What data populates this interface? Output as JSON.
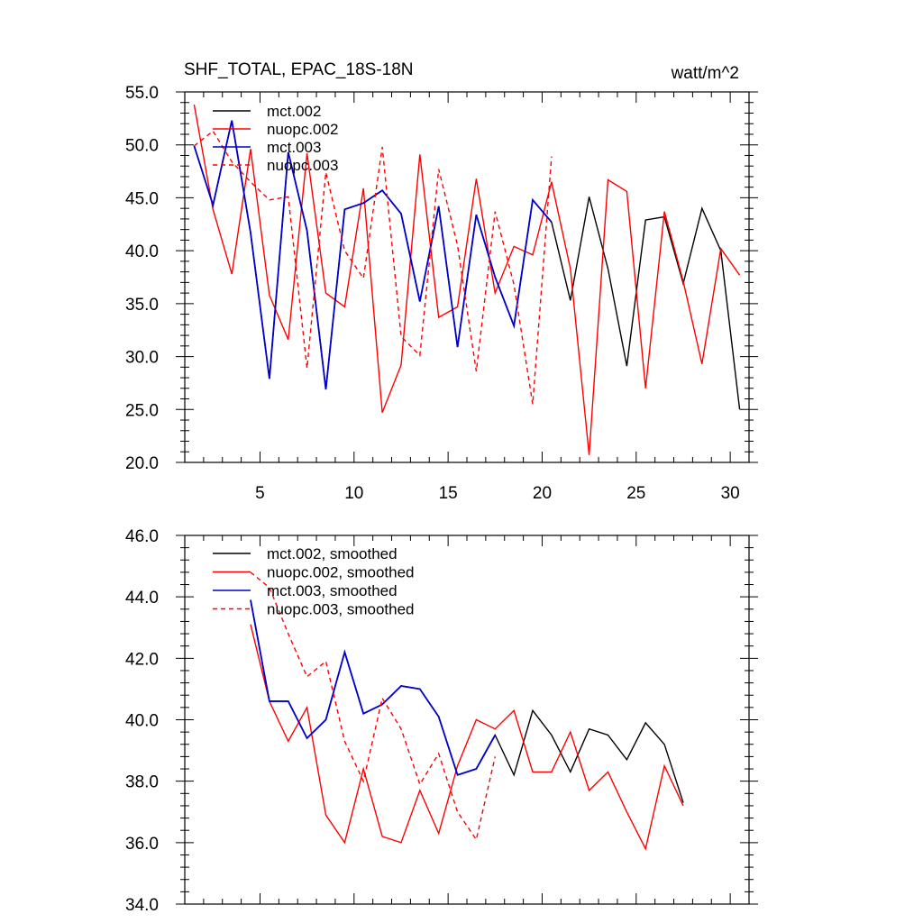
{
  "chart_data": [
    {
      "type": "line",
      "title": "SHF_TOTAL, EPAC_18S-18N",
      "units": "watt/m^2",
      "xlim": [
        1,
        31
      ],
      "ylim": [
        20,
        55
      ],
      "x_tick_labels": [
        "5",
        "10",
        "15",
        "20",
        "25",
        "30"
      ],
      "x_ticks": [
        5,
        10,
        15,
        20,
        25,
        30
      ],
      "y_tick_labels": [
        "20.0",
        "25.0",
        "30.0",
        "35.0",
        "40.0",
        "45.0",
        "50.0",
        "55.0"
      ],
      "y_ticks": [
        20,
        25,
        30,
        35,
        40,
        45,
        50,
        55
      ],
      "legend": {
        "placement": "top-left"
      },
      "series": [
        {
          "name": "mct.002",
          "color": "#000000",
          "dash": false,
          "x": [
            1.5,
            2.5,
            3.5,
            4.5,
            5.5,
            6.5,
            7.5,
            8.5,
            9.5,
            10.5,
            11.5,
            12.5,
            13.5,
            14.5,
            15.5,
            16.5,
            17.5,
            18.5,
            19.5,
            20.5,
            21.5,
            22.5,
            23.5,
            24.5,
            25.5,
            26.5,
            27.5,
            28.5,
            29.5,
            30.5
          ],
          "values": [
            49.9,
            44.3,
            52.3,
            41.7,
            27.9,
            49.3,
            41.9,
            26.9,
            43.9,
            44.5,
            45.7,
            43.5,
            35.2,
            44.2,
            30.9,
            43.4,
            37.5,
            32.9,
            44.8,
            42.7,
            35.3,
            45.1,
            38.3,
            29.1,
            42.9,
            43.2,
            36.9,
            44.0,
            40.0,
            25.0
          ]
        },
        {
          "name": "nuopc.002",
          "color": "#ff0000",
          "dash": false,
          "x": [
            1.5,
            2.5,
            3.5,
            4.5,
            5.5,
            6.5,
            7.5,
            8.5,
            9.5,
            10.5,
            11.5,
            12.5,
            13.5,
            14.5,
            15.5,
            16.5,
            17.5,
            18.5,
            19.5,
            20.5,
            21.5,
            22.5,
            23.5,
            24.5,
            25.5,
            26.5,
            27.5,
            28.5,
            29.5,
            30.5
          ],
          "values": [
            53.8,
            43.9,
            37.8,
            49.6,
            35.8,
            31.6,
            49.2,
            36.0,
            34.7,
            45.9,
            24.7,
            29.2,
            49.1,
            33.7,
            34.7,
            46.8,
            36.0,
            40.4,
            39.6,
            46.5,
            38.3,
            20.7,
            46.7,
            45.6,
            27.0,
            43.7,
            37.1,
            29.3,
            40.2,
            37.7
          ]
        },
        {
          "name": "mct.003",
          "color": "#0000cd",
          "dash": false,
          "x": [
            1.5,
            2.5,
            3.5,
            4.5,
            5.5,
            6.5,
            7.5,
            8.5,
            9.5,
            10.5,
            11.5,
            12.5,
            13.5,
            14.5,
            15.5,
            16.5,
            17.5,
            18.5,
            19.5,
            20.5
          ],
          "values": [
            49.9,
            44.3,
            52.3,
            41.7,
            27.9,
            49.3,
            41.9,
            26.9,
            43.9,
            44.5,
            45.7,
            43.5,
            35.2,
            44.2,
            30.9,
            43.4,
            37.5,
            32.9,
            44.8,
            42.7
          ]
        },
        {
          "name": "nuopc.003",
          "color": "#ff0000",
          "dash": true,
          "x": [
            1.5,
            2.5,
            3.5,
            4.5,
            5.5,
            6.5,
            7.5,
            8.5,
            9.5,
            10.5,
            11.5,
            12.5,
            13.5,
            14.5,
            15.5,
            16.5,
            17.5,
            18.5,
            19.5,
            20.5
          ],
          "values": [
            49.9,
            51.3,
            48.4,
            46.5,
            44.8,
            45.1,
            28.9,
            47.4,
            40.0,
            37.4,
            49.8,
            31.9,
            30.1,
            47.7,
            40.5,
            28.6,
            43.7,
            36.8,
            25.5,
            48.9
          ]
        }
      ]
    },
    {
      "type": "line",
      "title": "",
      "xlim": [
        1,
        31
      ],
      "ylim": [
        34,
        46
      ],
      "x_ticks": [
        5,
        10,
        15,
        20,
        25,
        30
      ],
      "y_tick_labels": [
        "34.0",
        "36.0",
        "38.0",
        "40.0",
        "42.0",
        "44.0",
        "46.0"
      ],
      "y_ticks": [
        34,
        36,
        38,
        40,
        42,
        44,
        46
      ],
      "legend": {
        "placement": "top-left"
      },
      "series": [
        {
          "name": "mct.002, smoothed",
          "color": "#000000",
          "dash": false,
          "x": [
            4.5,
            5.5,
            6.5,
            7.5,
            8.5,
            9.5,
            10.5,
            11.5,
            12.5,
            13.5,
            14.5,
            15.5,
            16.5,
            17.5,
            18.5,
            19.5,
            20.5,
            21.5,
            22.5,
            23.5,
            24.5,
            25.5,
            26.5,
            27.5
          ],
          "values": [
            43.9,
            40.6,
            40.6,
            39.4,
            40.0,
            42.2,
            40.2,
            40.5,
            41.1,
            41.0,
            40.1,
            38.2,
            38.4,
            39.5,
            38.2,
            40.3,
            39.5,
            38.3,
            39.7,
            39.5,
            38.7,
            39.9,
            39.2,
            37.3
          ]
        },
        {
          "name": "nuopc.002, smoothed",
          "color": "#ff0000",
          "dash": false,
          "x": [
            4.5,
            5.5,
            6.5,
            7.5,
            8.5,
            9.5,
            10.5,
            11.5,
            12.5,
            13.5,
            14.5,
            15.5,
            16.5,
            17.5,
            18.5,
            19.5,
            20.5,
            21.5,
            22.5,
            23.5,
            24.5,
            25.5,
            26.5,
            27.5
          ],
          "values": [
            43.1,
            40.6,
            39.3,
            40.4,
            36.9,
            36.0,
            38.4,
            36.2,
            36.0,
            37.7,
            36.3,
            38.5,
            40.0,
            39.7,
            40.3,
            38.3,
            38.3,
            39.6,
            37.7,
            38.3,
            37.0,
            35.8,
            38.5,
            37.2
          ]
        },
        {
          "name": "mct.003, smoothed",
          "color": "#0000cd",
          "dash": false,
          "x": [
            4.5,
            5.5,
            6.5,
            7.5,
            8.5,
            9.5,
            10.5,
            11.5,
            12.5,
            13.5,
            14.5,
            15.5,
            16.5,
            17.5
          ],
          "values": [
            43.9,
            40.6,
            40.6,
            39.4,
            40.0,
            42.2,
            40.2,
            40.5,
            41.1,
            41.0,
            40.1,
            38.2,
            38.4,
            39.5
          ]
        },
        {
          "name": "nuopc.003, smoothed",
          "color": "#ff0000",
          "dash": true,
          "x": [
            4.5,
            5.5,
            6.5,
            7.5,
            8.5,
            9.5,
            10.5,
            11.5,
            12.5,
            13.5,
            14.5,
            15.5,
            16.5,
            17.5
          ],
          "values": [
            44.8,
            44.3,
            42.8,
            41.4,
            41.9,
            39.3,
            38.0,
            40.7,
            39.7,
            37.9,
            38.9,
            37.0,
            36.1,
            38.8
          ]
        }
      ]
    }
  ]
}
